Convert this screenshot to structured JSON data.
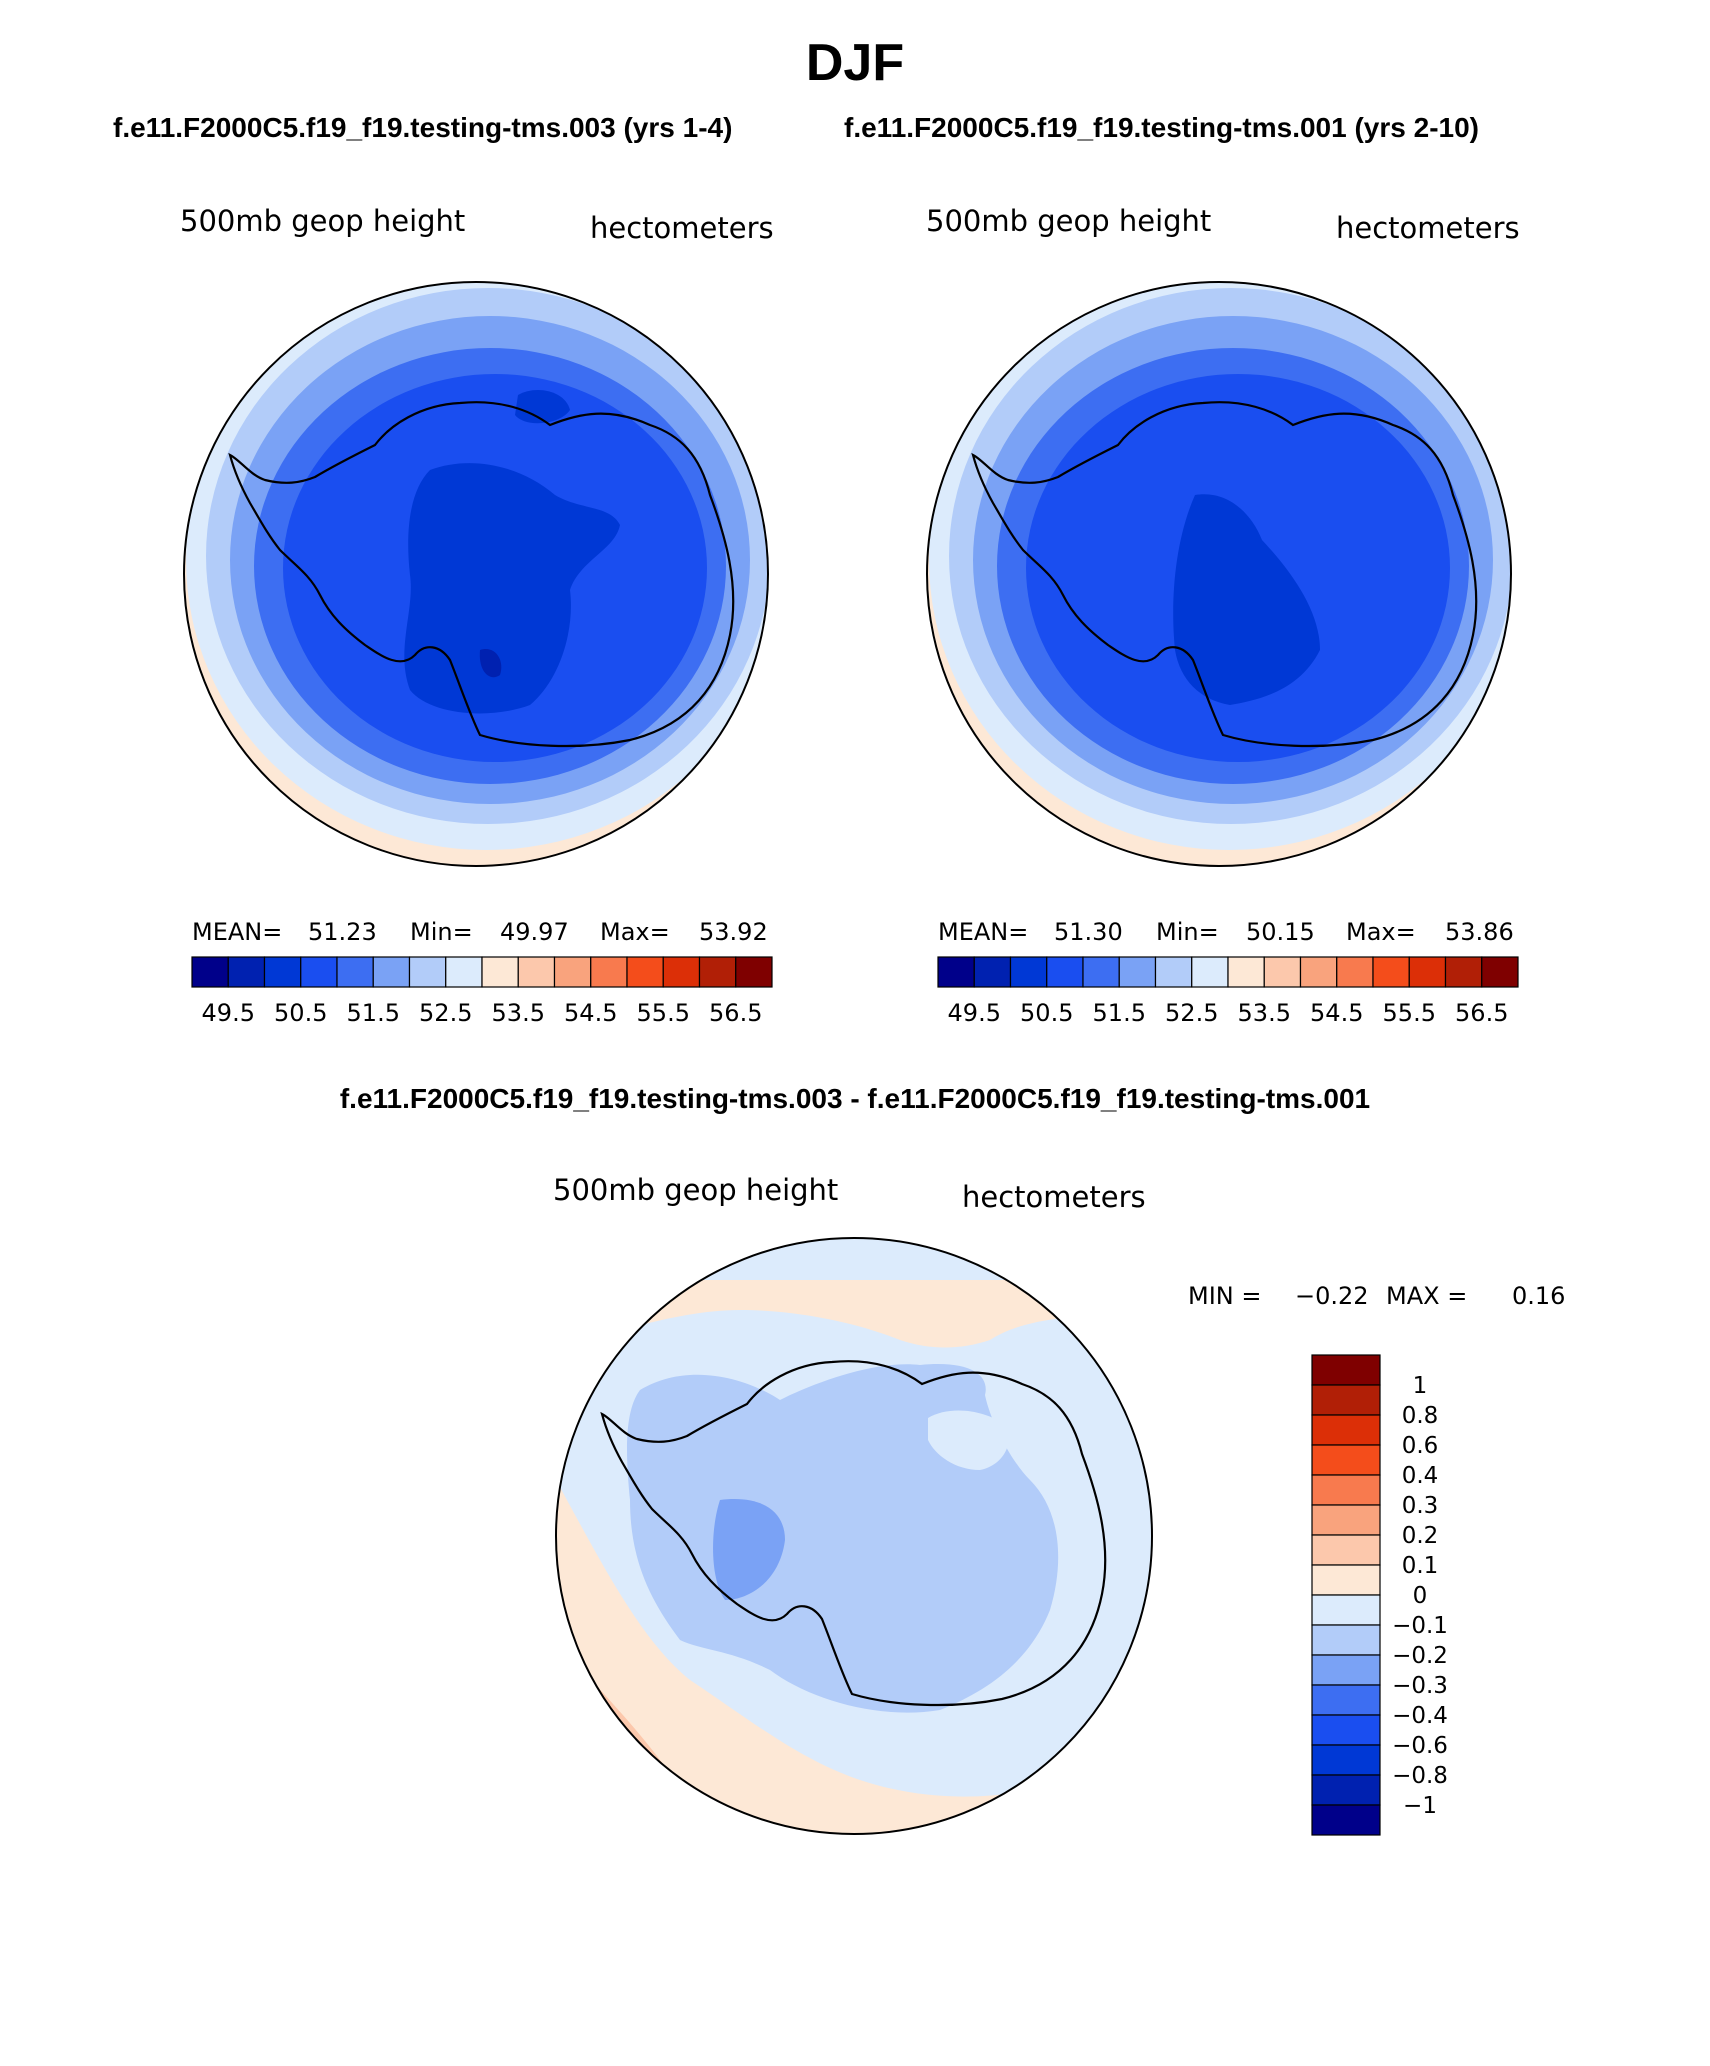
{
  "season_title": "DJF",
  "panels": [
    {
      "case_label": "f.e11.F2000C5.f19_f19.testing-tms.003 (yrs 1-4)",
      "variable": "500mb geop height",
      "units": "hectometers",
      "stats": {
        "mean_label": "MEAN=",
        "mean": "51.23",
        "min_label": "Min=",
        "min": "49.97",
        "max_label": "Max=",
        "max": "53.92"
      }
    },
    {
      "case_label": "f.e11.F2000C5.f19_f19.testing-tms.001 (yrs 2-10)",
      "variable": "500mb geop height",
      "units": "hectometers",
      "stats": {
        "mean_label": "MEAN=",
        "mean": "51.30",
        "min_label": "Min=",
        "min": "50.15",
        "max_label": "Max=",
        "max": "53.86"
      }
    }
  ],
  "diff_panel": {
    "title": "f.e11.F2000C5.f19_f19.testing-tms.003 - f.e11.F2000C5.f19_f19.testing-tms.001",
    "variable": "500mb geop height",
    "units": "hectometers",
    "min_label": "MIN =",
    "min": "−0.22",
    "max_label": "MAX =",
    "max": "0.16"
  },
  "colorbar_main": {
    "colors": [
      "#00008a",
      "#0021b0",
      "#0038d5",
      "#1a4ef0",
      "#3d6ef2",
      "#7aa2f5",
      "#b2ccf9",
      "#dcebfc",
      "#fde8d6",
      "#fcc8ac",
      "#f9a37d",
      "#f87a4e",
      "#f44d1b",
      "#dc2f07",
      "#b11f06",
      "#7f0000"
    ],
    "tick_labels": [
      "49.5",
      "50.5",
      "51.5",
      "52.5",
      "53.5",
      "54.5",
      "55.5",
      "56.5"
    ]
  },
  "colorbar_diff": {
    "colors_top_to_bottom": [
      "#7f0000",
      "#b11f06",
      "#dc2f07",
      "#f44d1b",
      "#f87a4e",
      "#f9a37d",
      "#fcc8ac",
      "#fde8d6",
      "#dcebfc",
      "#b2ccf9",
      "#7aa2f5",
      "#3d6ef2",
      "#1a4ef0",
      "#0038d5",
      "#0021b0",
      "#00008a"
    ],
    "tick_labels": [
      "1",
      "0.8",
      "0.6",
      "0.4",
      "0.3",
      "0.2",
      "0.1",
      "0",
      "−0.1",
      "−0.2",
      "−0.3",
      "−0.4",
      "−0.6",
      "−0.8",
      "−1"
    ]
  },
  "fields": {
    "outer_ring": "#fde8d6",
    "panel1_levels": [
      "#fde8d6",
      "#dcebfc",
      "#b2ccf9",
      "#7aa2f5",
      "#3d6ef2",
      "#1a4ef0",
      "#0038d5",
      "#0021b0"
    ],
    "panel2_levels": [
      "#fde8d6",
      "#dcebfc",
      "#b2ccf9",
      "#7aa2f5",
      "#3d6ef2",
      "#1a4ef0",
      "#0038d5"
    ],
    "diff_background": "#dcebfc",
    "diff_positive": "#fde8d6",
    "diff_positive_strong": "#fcc8ac",
    "diff_negative": "#b2ccf9",
    "diff_negative_strong": "#7aa2f5",
    "coastline": "#000000"
  }
}
